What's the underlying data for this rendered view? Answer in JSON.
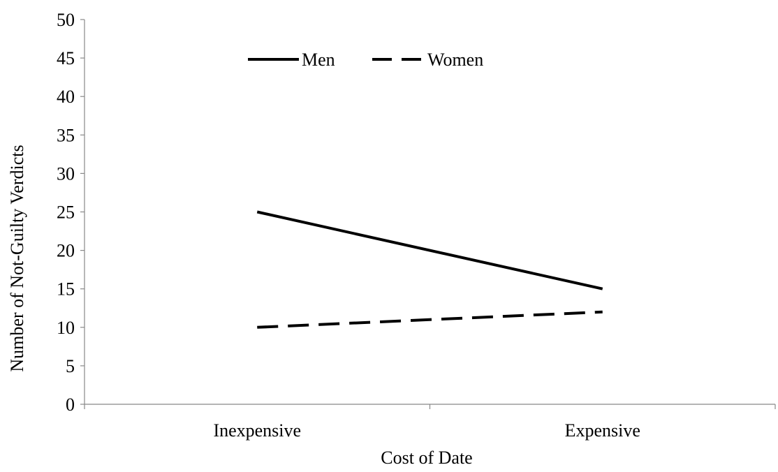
{
  "chart_data": {
    "type": "line",
    "categories": [
      "Inexpensive",
      "Expensive"
    ],
    "series": [
      {
        "name": "Men",
        "values": [
          25,
          15
        ],
        "style": "solid",
        "color": "#000000"
      },
      {
        "name": "Women",
        "values": [
          10,
          12
        ],
        "style": "dashed",
        "color": "#000000"
      }
    ],
    "yticks": [
      "0",
      "5",
      "10",
      "15",
      "20",
      "25",
      "30",
      "35",
      "40",
      "45",
      "50"
    ],
    "ylim": [
      0,
      50
    ],
    "xlabel": "Cost of Date",
    "ylabel": "Number of Not-Guilty Verdicts",
    "grid": false,
    "legend_position": "top-left"
  }
}
